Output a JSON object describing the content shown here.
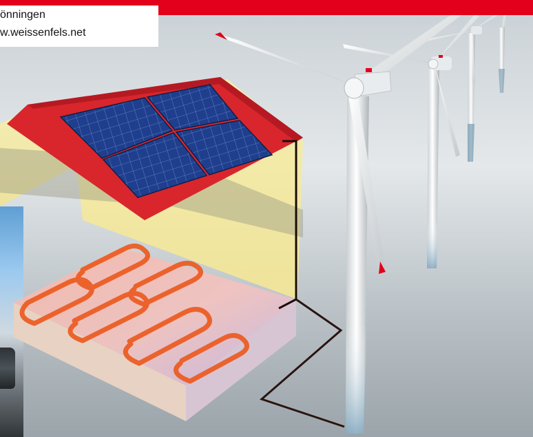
{
  "caption": {
    "line1": "önningen",
    "line2": "w.weissenfels.net"
  },
  "colors": {
    "accent_bar": "#e2001a",
    "roof": "#d8262c",
    "wall": "#f3eba8",
    "heating_pipe": "#ec5a1f",
    "solar_cell": "#1d3f8f",
    "cable": "#2a1410",
    "turbine": "#eef0f1"
  },
  "icons": [
    "house-icon",
    "solar-panel-icon",
    "wind-turbine-icon",
    "floor-heating-icon"
  ]
}
